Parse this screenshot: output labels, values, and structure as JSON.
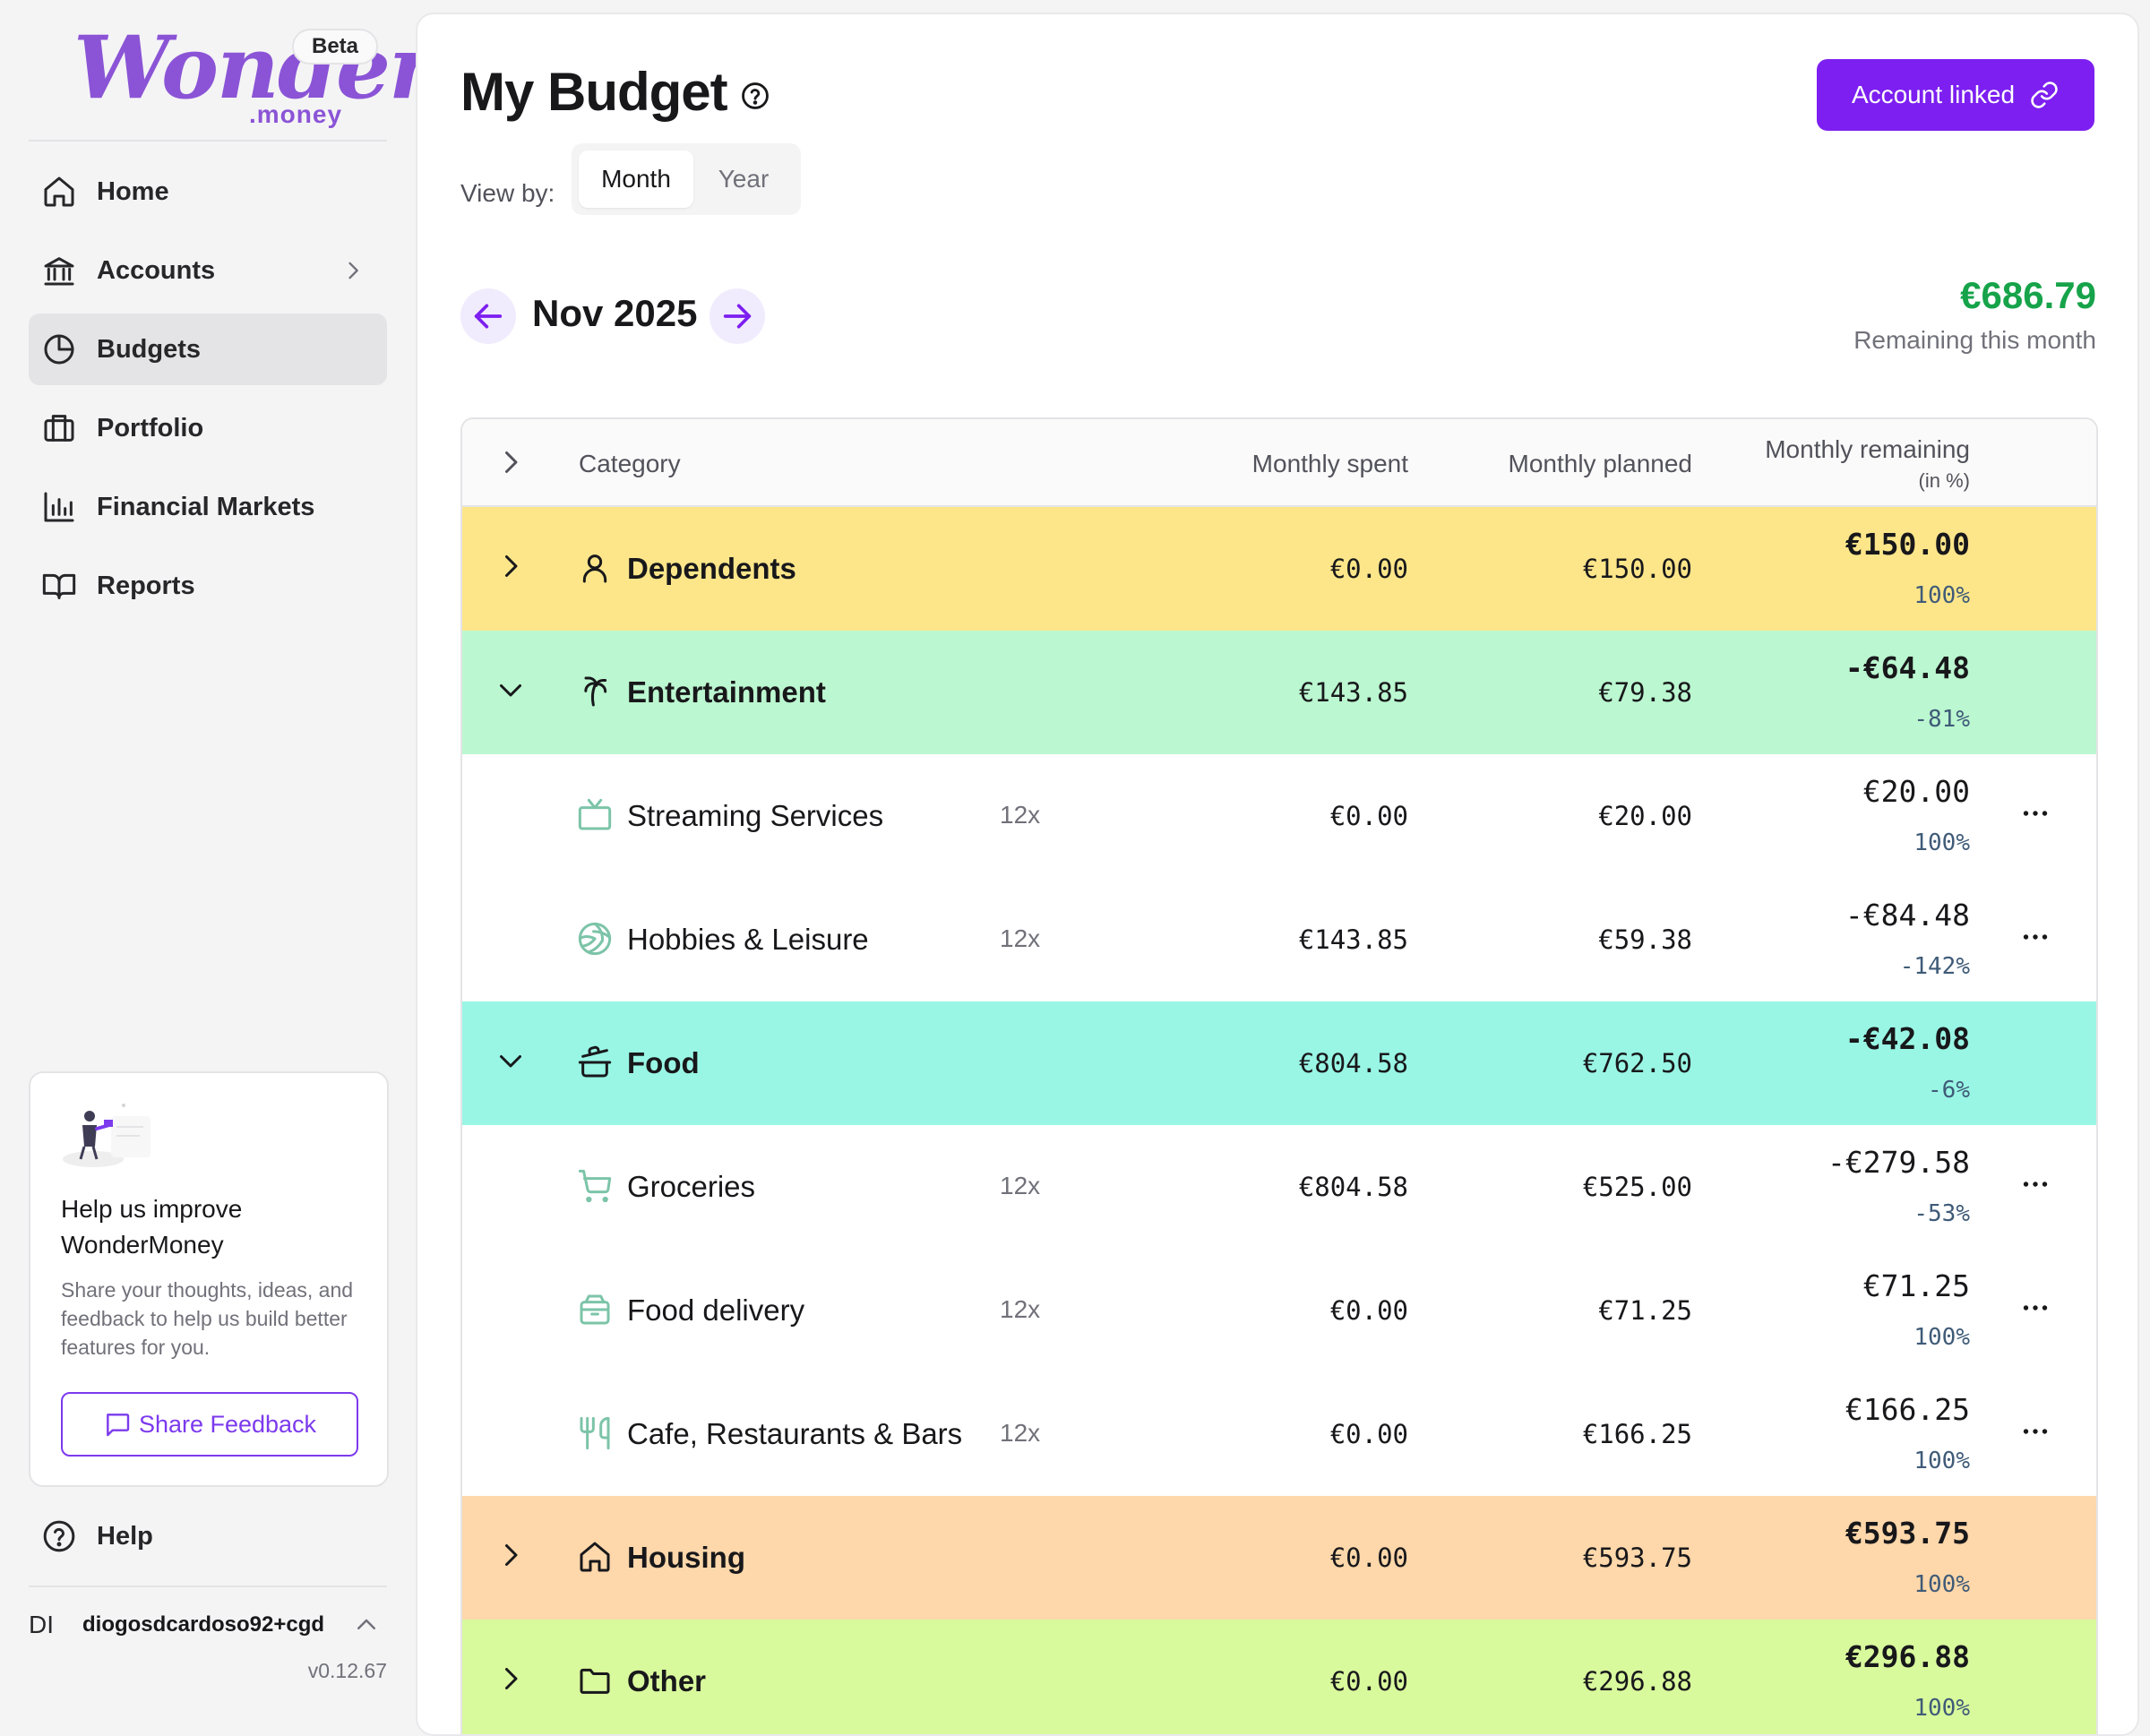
{
  "app": {
    "logo_text": "Wonder",
    "logo_sub": ".money",
    "beta_badge": "Beta",
    "version": "v0.12.67"
  },
  "sidebar": {
    "items": [
      {
        "label": "Home",
        "icon": "home-icon"
      },
      {
        "label": "Accounts",
        "icon": "bank-icon"
      },
      {
        "label": "Budgets",
        "icon": "pie-chart-icon",
        "active": true
      },
      {
        "label": "Portfolio",
        "icon": "briefcase-icon"
      },
      {
        "label": "Financial Markets",
        "icon": "bar-chart-icon"
      },
      {
        "label": "Reports",
        "icon": "book-icon"
      }
    ],
    "feedback": {
      "title": "Help us improve WonderMoney",
      "description": "Share your thoughts, ideas, and feedback to help us build better features for you.",
      "button": "Share Feedback"
    },
    "help_label": "Help",
    "user": {
      "initials": "DI",
      "name": "diogosdcardoso92+cgd"
    }
  },
  "header": {
    "title": "My Budget",
    "account_button": "Account linked",
    "view_by_label": "View by:",
    "view_options": [
      "Month",
      "Year"
    ],
    "selected_view": "Month"
  },
  "period": {
    "label": "Nov 2025",
    "remaining_amount": "€686.79",
    "remaining_label": "Remaining this month"
  },
  "table": {
    "headers": {
      "category": "Category",
      "spent": "Monthly spent",
      "planned": "Monthly planned",
      "remaining": "Monthly remaining",
      "remaining_sub": "(in %)"
    },
    "rows": [
      {
        "type": "group",
        "name": "Dependents",
        "icon": "person-icon",
        "expanded": false,
        "spent": "€0.00",
        "planned": "€150.00",
        "remaining": "€150.00",
        "pct": "100%",
        "bg": "#fde68a"
      },
      {
        "type": "group",
        "name": "Entertainment",
        "icon": "palm-tree-icon",
        "expanded": true,
        "spent": "€143.85",
        "planned": "€79.38",
        "remaining": "-€64.48",
        "pct": "-81%",
        "bg": "#bbf7d0"
      },
      {
        "type": "child",
        "name": "Streaming Services",
        "icon": "tv-icon",
        "freq": "12x",
        "spent": "€0.00",
        "planned": "€20.00",
        "remaining": "€20.00",
        "pct": "100%"
      },
      {
        "type": "child",
        "name": "Hobbies & Leisure",
        "icon": "volleyball-icon",
        "freq": "12x",
        "spent": "€143.85",
        "planned": "€59.38",
        "remaining": "-€84.48",
        "pct": "-142%"
      },
      {
        "type": "group",
        "name": "Food",
        "icon": "cooking-pot-icon",
        "expanded": true,
        "spent": "€804.58",
        "planned": "€762.50",
        "remaining": "-€42.08",
        "pct": "-6%",
        "bg": "#99f6e4"
      },
      {
        "type": "child",
        "name": "Groceries",
        "icon": "shopping-cart-icon",
        "freq": "12x",
        "spent": "€804.58",
        "planned": "€525.00",
        "remaining": "-€279.58",
        "pct": "-53%"
      },
      {
        "type": "child",
        "name": "Food delivery",
        "icon": "delivery-box-icon",
        "freq": "12x",
        "spent": "€0.00",
        "planned": "€71.25",
        "remaining": "€71.25",
        "pct": "100%"
      },
      {
        "type": "child",
        "name": "Cafe, Restaurants & Bars",
        "icon": "utensils-icon",
        "freq": "12x",
        "spent": "€0.00",
        "planned": "€166.25",
        "remaining": "€166.25",
        "pct": "100%"
      },
      {
        "type": "group",
        "name": "Housing",
        "icon": "house-icon",
        "expanded": false,
        "spent": "€0.00",
        "planned": "€593.75",
        "remaining": "€593.75",
        "pct": "100%",
        "bg": "#fed7aa"
      },
      {
        "type": "group",
        "name": "Other",
        "icon": "folder-icon",
        "expanded": false,
        "spent": "€0.00",
        "planned": "€296.88",
        "remaining": "€296.88",
        "pct": "100%",
        "bg": "#d9f99d"
      }
    ]
  },
  "colors": {
    "accent": "#7c1ff0",
    "positive": "#16a34a",
    "dependents_bg": "#fde68a",
    "entertainment_bg": "#bbf7d0",
    "food_bg": "#99f6e4",
    "housing_bg": "#fed7aa",
    "other_bg": "#d9f99d"
  }
}
